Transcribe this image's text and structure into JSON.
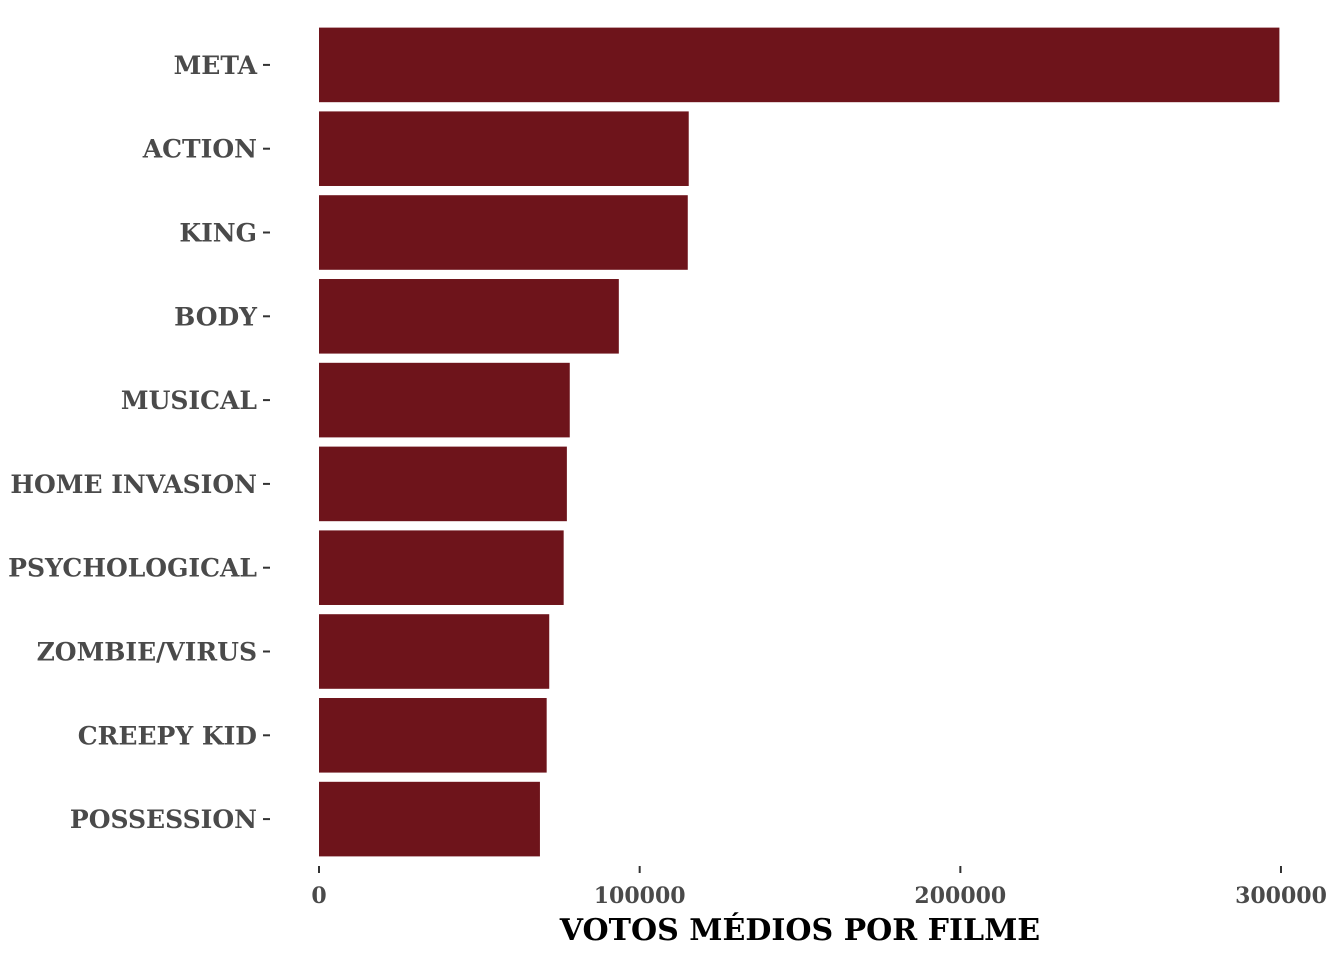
{
  "chart_data": {
    "type": "bar",
    "orientation": "horizontal",
    "categories": [
      "META",
      "ACTION",
      "KING",
      "BODY",
      "MUSICAL",
      "HOME INVASION",
      "PSYCHOLOGICAL",
      "ZOMBIE/VIRUS",
      "CREEPY KID",
      "POSSESSION"
    ],
    "values": [
      299500,
      115300,
      115000,
      93500,
      78200,
      77300,
      76300,
      71800,
      71000,
      68900
    ],
    "xlabel": "VOTOS MÉDIOS POR FILME",
    "ylabel": "",
    "title": "",
    "xlim": [
      0,
      300000
    ],
    "xticks": [
      0,
      100000,
      200000,
      300000
    ],
    "xtick_labels": [
      "0",
      "100000",
      "200000",
      "300000"
    ],
    "bar_color": "#6e141b",
    "grid": false,
    "legend": "none"
  }
}
